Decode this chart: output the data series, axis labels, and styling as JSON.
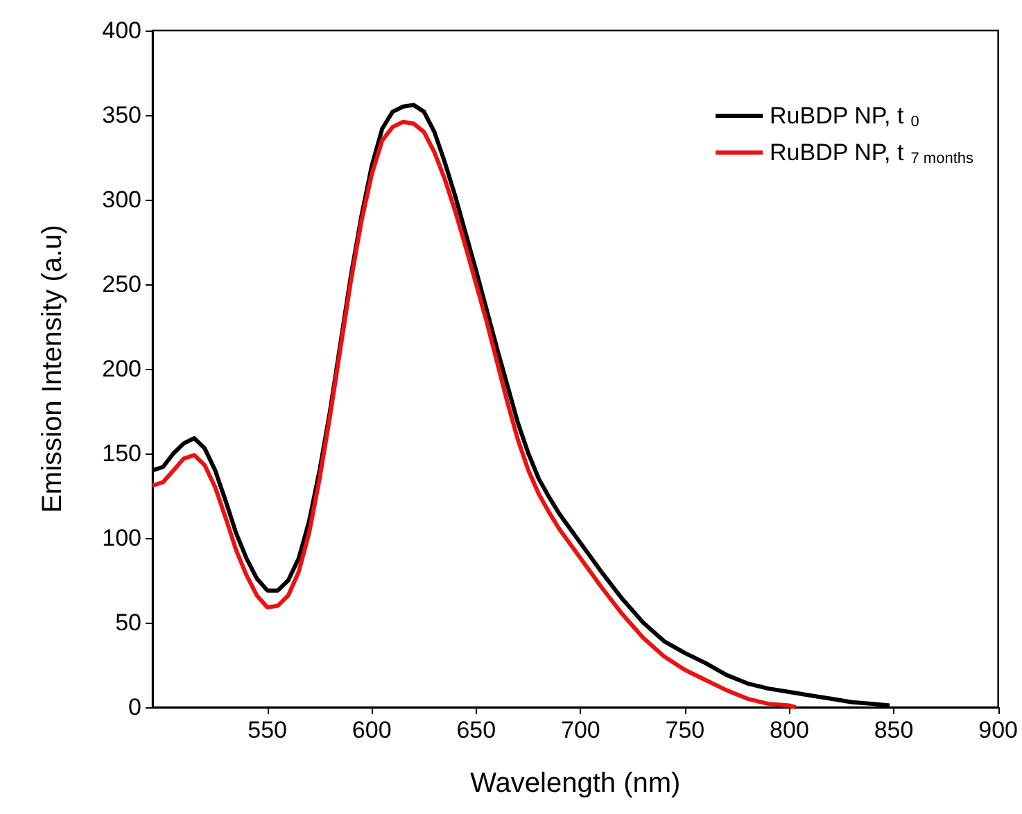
{
  "chart_data": {
    "type": "line",
    "xlabel": "Wavelength (nm)",
    "ylabel": "Emission Intensity (a.u)",
    "xlim": [
      495,
      900
    ],
    "xticks": [
      550,
      600,
      650,
      700,
      750,
      800,
      850,
      900
    ],
    "ylim": [
      0,
      400
    ],
    "yticks": [
      0,
      50,
      100,
      150,
      200,
      250,
      300,
      350,
      400
    ],
    "grid": false,
    "legend": "top right",
    "marker": "none",
    "line_style": "solid",
    "x": [
      495,
      500,
      505,
      510,
      515,
      520,
      525,
      530,
      535,
      540,
      545,
      550,
      555,
      560,
      565,
      570,
      575,
      580,
      585,
      590,
      595,
      600,
      605,
      610,
      615,
      620,
      625,
      630,
      635,
      640,
      645,
      650,
      655,
      660,
      665,
      670,
      675,
      680,
      685,
      690,
      700,
      710,
      720,
      730,
      740,
      750,
      760,
      770,
      780,
      790,
      800,
      810,
      820,
      830,
      840,
      848
    ],
    "series": [
      {
        "name": "RuBDP NP, t$_{0}$",
        "color": "#000000",
        "values": [
          140,
          142,
          150,
          156,
          159,
          153,
          140,
          122,
          103,
          88,
          76,
          69,
          69,
          75,
          88,
          110,
          140,
          175,
          215,
          255,
          290,
          320,
          342,
          352,
          355,
          356,
          352,
          340,
          322,
          302,
          280,
          258,
          235,
          212,
          190,
          168,
          150,
          135,
          124,
          114,
          97,
          80,
          64,
          50,
          39,
          32,
          26,
          19,
          14,
          11,
          9,
          7,
          5,
          3,
          2,
          1
        ]
      },
      {
        "name": "RuBDP NP, t$_{7 months}$",
        "color": "#ee1111",
        "x": [
          495,
          500,
          505,
          510,
          515,
          520,
          525,
          530,
          535,
          540,
          545,
          550,
          555,
          560,
          565,
          570,
          575,
          580,
          585,
          590,
          595,
          600,
          605,
          610,
          615,
          620,
          625,
          630,
          635,
          640,
          645,
          650,
          655,
          660,
          665,
          670,
          675,
          680,
          685,
          690,
          700,
          710,
          720,
          730,
          740,
          750,
          760,
          770,
          780,
          790,
          800,
          803
        ],
        "values": [
          131,
          133,
          140,
          147,
          149,
          143,
          130,
          112,
          93,
          78,
          66,
          59,
          60,
          66,
          80,
          103,
          135,
          172,
          212,
          252,
          287,
          315,
          335,
          343,
          346,
          345,
          340,
          328,
          312,
          293,
          272,
          250,
          228,
          204,
          180,
          158,
          140,
          126,
          115,
          105,
          88,
          71,
          55,
          41,
          30,
          22,
          16,
          10,
          5,
          2,
          1,
          0
        ]
      }
    ]
  }
}
